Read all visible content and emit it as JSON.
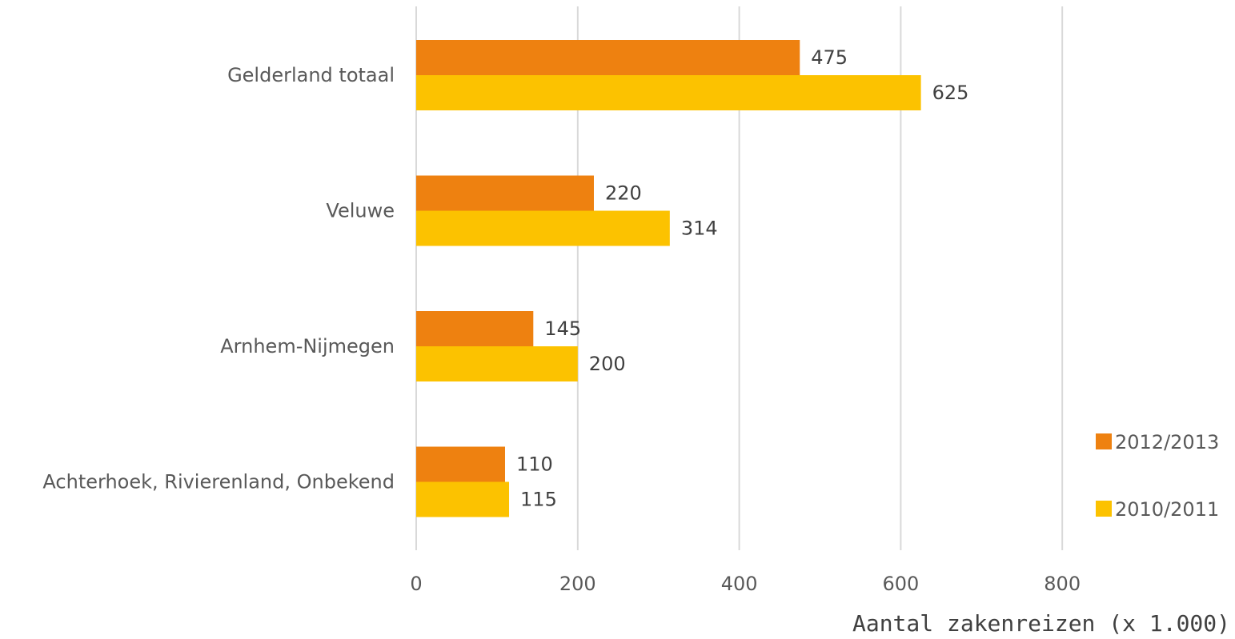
{
  "chart_data": {
    "type": "bar",
    "orientation": "horizontal",
    "categories": [
      "Gelderland totaal",
      "Veluwe",
      "Arnhem-Nijmegen",
      "Achterhoek, Rivierenland, Onbekend"
    ],
    "series": [
      {
        "name": "2012/2013",
        "values": [
          475,
          220,
          145,
          110
        ],
        "color": "#ee8110"
      },
      {
        "name": "2010/2011",
        "values": [
          625,
          314,
          200,
          115
        ],
        "color": "#fcc200"
      }
    ],
    "xlabel": "Aantal zakenreizen (x 1.000)",
    "ylabel": "",
    "xlim": [
      0,
      800
    ],
    "xticks": [
      0,
      200,
      400,
      600,
      800
    ],
    "grid": true,
    "legend": "right"
  }
}
